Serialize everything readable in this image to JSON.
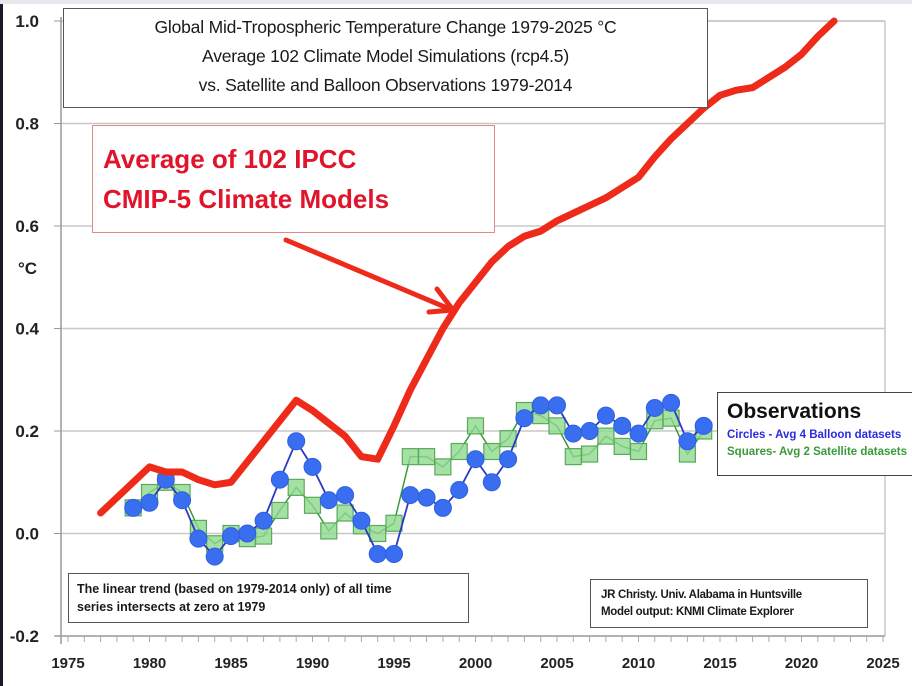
{
  "chart_data": {
    "type": "line",
    "title": "Global Mid-Tropospheric Temperature Change 1979-2025 °C",
    "title_lines": [
      "Global Mid-Tropospheric Temperature Change 1979-2025 °C",
      "Average 102 Climate Model Simulations (rcp4.5)",
      "vs. Satellite and Balloon Observations 1979-2014"
    ],
    "xlabel": "",
    "ylabel": "°C",
    "xlim": [
      1975,
      2025
    ],
    "ylim": [
      -0.2,
      1.0
    ],
    "grid": true,
    "x_ticks": [
      1975,
      1980,
      1985,
      1990,
      1995,
      2000,
      2005,
      2010,
      2015,
      2020,
      2025
    ],
    "x_tick_labels": [
      "1975",
      "1980",
      "1985",
      "1990",
      "1995",
      "2000",
      "2005",
      "2010",
      "2015",
      "2020",
      "2025"
    ],
    "y_ticks": [
      -0.2,
      0.0,
      0.2,
      0.4,
      0.6,
      0.8,
      1.0
    ],
    "y_tick_labels": [
      "-0.2",
      "0.0",
      "0.2",
      "0.4",
      "0.6",
      "0.8",
      "1.0"
    ],
    "series": [
      {
        "name": "Average of 102 IPCC CMIP-5 Climate Models",
        "kind": "line",
        "color": "#ee2a1a",
        "x": [
          1977,
          1978,
          1979,
          1980,
          1981,
          1982,
          1983,
          1984,
          1985,
          1986,
          1987,
          1988,
          1989,
          1990,
          1991,
          1992,
          1993,
          1994,
          1995,
          1996,
          1997,
          1998,
          1999,
          2000,
          2001,
          2002,
          2003,
          2004,
          2005,
          2006,
          2007,
          2008,
          2009,
          2010,
          2011,
          2012,
          2013,
          2014,
          2015,
          2016,
          2017,
          2018,
          2019,
          2020,
          2021,
          2022
        ],
        "values": [
          0.04,
          0.07,
          0.1,
          0.13,
          0.12,
          0.12,
          0.105,
          0.095,
          0.1,
          0.14,
          0.18,
          0.22,
          0.26,
          0.24,
          0.215,
          0.19,
          0.15,
          0.145,
          0.21,
          0.28,
          0.34,
          0.4,
          0.45,
          0.49,
          0.53,
          0.56,
          0.58,
          0.59,
          0.61,
          0.625,
          0.64,
          0.655,
          0.675,
          0.695,
          0.735,
          0.77,
          0.8,
          0.83,
          0.855,
          0.865,
          0.87,
          0.89,
          0.91,
          0.935,
          0.97,
          1.0
        ]
      },
      {
        "name": "Circles - Avg 4 Balloon datasets",
        "kind": "circles",
        "color": "#3a6ef0",
        "x": [
          1979,
          1980,
          1981,
          1982,
          1983,
          1984,
          1985,
          1986,
          1987,
          1988,
          1989,
          1990,
          1991,
          1992,
          1993,
          1994,
          1995,
          1996,
          1997,
          1998,
          1999,
          2000,
          2001,
          2002,
          2003,
          2004,
          2005,
          2006,
          2007,
          2008,
          2009,
          2010,
          2011,
          2012,
          2013,
          2014
        ],
        "values": [
          0.05,
          0.06,
          0.105,
          0.065,
          -0.01,
          -0.045,
          -0.005,
          0.0,
          0.025,
          0.105,
          0.18,
          0.13,
          0.065,
          0.075,
          0.025,
          -0.04,
          -0.04,
          0.075,
          0.07,
          0.05,
          0.085,
          0.145,
          0.1,
          0.145,
          0.225,
          0.25,
          0.25,
          0.195,
          0.2,
          0.23,
          0.21,
          0.195,
          0.245,
          0.255,
          0.18,
          0.21
        ]
      },
      {
        "name": "Squares- Avg 2 Satellite datasets",
        "kind": "squares",
        "color": "#8fd88f",
        "x": [
          1979,
          1980,
          1981,
          1982,
          1983,
          1984,
          1985,
          1986,
          1987,
          1988,
          1989,
          1990,
          1991,
          1992,
          1993,
          1994,
          1995,
          1996,
          1997,
          1998,
          1999,
          2000,
          2001,
          2002,
          2003,
          2004,
          2005,
          2006,
          2007,
          2008,
          2009,
          2010,
          2011,
          2012,
          2013,
          2014
        ],
        "values": [
          0.05,
          0.08,
          0.1,
          0.08,
          0.01,
          -0.02,
          0.0,
          -0.01,
          -0.005,
          0.045,
          0.09,
          0.055,
          0.005,
          0.04,
          0.015,
          0.0,
          0.02,
          0.15,
          0.15,
          0.13,
          0.16,
          0.21,
          0.16,
          0.185,
          0.24,
          0.23,
          0.21,
          0.15,
          0.155,
          0.19,
          0.17,
          0.16,
          0.22,
          0.225,
          0.155,
          0.2
        ]
      }
    ],
    "annotations": {
      "model_callout": [
        "Average of 102 IPCC",
        "CMIP-5 Climate Models"
      ],
      "legend_title": "Observations",
      "legend_circles": "Circles - Avg 4 Balloon datasets",
      "legend_squares": "Squares- Avg 2 Satellite datasets",
      "trend_note": [
        "The linear trend (based on 1979-2014 only) of all time",
        "series intersects at zero at 1979"
      ],
      "credit": [
        "JR Christy. Univ. Alabama in Huntsville",
        "Model output: KNMI Climate Explorer"
      ]
    },
    "legend_placement": "right"
  }
}
